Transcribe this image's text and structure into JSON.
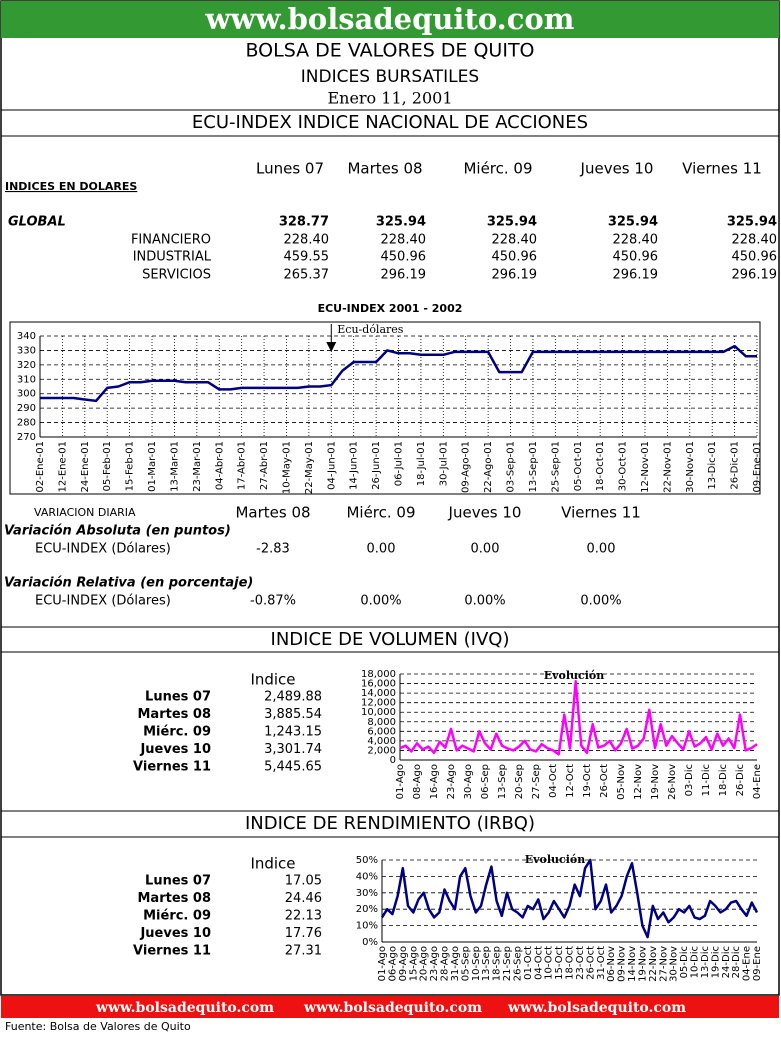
{
  "header": {
    "site": "www.bolsadequito.com",
    "title": "BOLSA DE VALORES DE QUITO",
    "subtitle": "INDICES BURSATILES",
    "date": "Enero 11, 2001"
  },
  "ecu": {
    "title": "ECU-INDEX  INDICE NACIONAL DE ACCIONES",
    "days": [
      "Lunes 07",
      "Martes 08",
      "Miérc. 09",
      "Jueves 10",
      "Viernes 11"
    ],
    "section": "INDICES EN DOLARES",
    "rows": [
      {
        "name": "GLOBAL",
        "values": [
          "328.77",
          "325.94",
          "325.94",
          "325.94",
          "325.94"
        ]
      },
      {
        "name": "FINANCIERO",
        "values": [
          "228.40",
          "228.40",
          "228.40",
          "228.40",
          "228.40"
        ]
      },
      {
        "name": "INDUSTRIAL",
        "values": [
          "459.55",
          "450.96",
          "450.96",
          "450.96",
          "450.96"
        ]
      },
      {
        "name": "SERVICIOS",
        "values": [
          "265.37",
          "296.19",
          "296.19",
          "296.19",
          "296.19"
        ]
      }
    ]
  },
  "variacion": {
    "title": "VARIACION DIARIA",
    "days": [
      "Martes 08",
      "Miérc. 09",
      "Jueves 10",
      "Viernes 11"
    ],
    "absolute": {
      "label": "Variación Absoluta (en puntos)",
      "row": "ECU-INDEX (Dólares)",
      "values": [
        "-2.83",
        "0.00",
        "0.00",
        "0.00"
      ]
    },
    "relative": {
      "label": "Variación Relativa (en porcentaje)",
      "row": "ECU-INDEX (Dólares)",
      "values": [
        "-0.87%",
        "0.00%",
        "0.00%",
        "0.00%"
      ]
    }
  },
  "volumen": {
    "title": "INDICE DE VOLUMEN (IVQ)",
    "column": "Indice",
    "rows": [
      {
        "day": "Lunes 07",
        "value": "2,489.88"
      },
      {
        "day": "Martes 08",
        "value": "3,885.54"
      },
      {
        "day": "Miérc. 09",
        "value": "1,243.15"
      },
      {
        "day": "Jueves 10",
        "value": "3,301.74"
      },
      {
        "day": "Viernes 11",
        "value": "5,445.65"
      }
    ]
  },
  "rendimiento": {
    "title": "INDICE DE RENDIMIENTO (IRBQ)",
    "column": "Indice",
    "rows": [
      {
        "day": "Lunes 07",
        "value": "17.05"
      },
      {
        "day": "Martes 08",
        "value": "24.46"
      },
      {
        "day": "Miérc. 09",
        "value": "22.13"
      },
      {
        "day": "Jueves 10",
        "value": "17.76"
      },
      {
        "day": "Viernes 11",
        "value": "27.31"
      }
    ]
  },
  "footer": {
    "links": [
      "www.bolsadequito.com",
      "www.bolsadequito.com",
      "www.bolsadequito.com"
    ],
    "source": "Fuente: Bolsa de Valores de Quito"
  },
  "chart_data": [
    {
      "type": "line",
      "title": "ECU-INDEX 2001 - 2002",
      "annotation": "Ecu-dólares",
      "color": "#000080",
      "grid": true,
      "xgrid": true,
      "ylim": [
        270,
        340
      ],
      "yticks": [
        270,
        280,
        290,
        300,
        310,
        320,
        330,
        340
      ],
      "categories": [
        "02-Ene-01",
        null,
        "12-Ene-01",
        null,
        "24-Ene-01",
        null,
        "05-Feb-01",
        null,
        "15-Feb-01",
        null,
        "01-Mar-01",
        null,
        "13-Mar-01",
        null,
        "23-Mar-01",
        null,
        "04-Abr-01",
        null,
        "17-Abr-01",
        null,
        "27-Abr-01",
        null,
        "10-May-01",
        null,
        "22-May-01",
        null,
        "04-Jun-01",
        null,
        "14-Jun-01",
        null,
        "26-Jun-01",
        null,
        "06-Jul-01",
        null,
        "18-Jul-01",
        null,
        "30-Jul-01",
        null,
        "09-Ago-01",
        null,
        "22-Ago-01",
        null,
        "03-Sep-01",
        null,
        "13-Sep-01",
        null,
        "25-Sep-01",
        null,
        "05-Oct-01",
        null,
        "18-Oct-01",
        null,
        "30-Oct-01",
        null,
        "12-Nov-01",
        null,
        "22-Nov-01",
        null,
        "30-Nov-01",
        null,
        "13-Dic-01",
        null,
        "26-Dic-01",
        null,
        "09-Ene-01"
      ],
      "values": [
        297,
        297,
        297,
        297,
        296,
        295,
        304,
        305,
        308,
        308,
        309,
        309,
        309,
        308,
        308,
        308,
        303,
        303,
        304,
        304,
        304,
        304,
        304,
        304,
        305,
        305,
        306,
        316,
        322,
        322,
        322,
        330,
        328,
        328,
        327,
        327,
        327,
        329,
        329,
        329,
        329,
        315,
        315,
        315,
        329,
        329,
        329,
        329,
        329,
        329,
        329,
        329,
        329,
        329,
        329,
        329,
        329,
        329,
        329,
        329,
        329,
        329,
        333,
        326,
        326
      ]
    },
    {
      "type": "line",
      "title": "Evolución",
      "color": "#ff00ff",
      "grid": true,
      "ylim": [
        0,
        18000
      ],
      "yticks": [
        0,
        {
          "value": 2000,
          "label": "2,000"
        },
        {
          "value": 4000,
          "label": "4,000"
        },
        {
          "value": 6000,
          "label": "6,000"
        },
        {
          "value": 8000,
          "label": "8,000"
        },
        {
          "value": 10000,
          "label": "10,000"
        },
        {
          "value": 12000,
          "label": "12,000"
        },
        {
          "value": 14000,
          "label": "14,000"
        },
        {
          "value": 16000,
          "label": "16,000"
        },
        {
          "value": 18000,
          "label": "18,000"
        }
      ],
      "categories": [
        "01-Ago",
        null,
        null,
        "08-Ago",
        null,
        null,
        "16-Ago",
        null,
        null,
        "23-Ago",
        null,
        null,
        "30-Ago",
        null,
        null,
        "06-Sep",
        null,
        null,
        "13-Sep",
        null,
        null,
        "20-Sep",
        null,
        null,
        "27-Sep",
        null,
        null,
        "04-Oct",
        null,
        null,
        "12-Oct",
        null,
        null,
        "19-Oct",
        null,
        null,
        "26-Oct",
        null,
        null,
        "05-Nov",
        null,
        null,
        "12-Nov",
        null,
        null,
        "19-Nov",
        null,
        null,
        "26-Nov",
        null,
        null,
        "03-Dic",
        null,
        null,
        "11-Dic",
        null,
        null,
        "18-Dic",
        null,
        null,
        "26-Dic",
        null,
        null,
        "04-Ene"
      ],
      "values": [
        2500,
        3000,
        1800,
        3500,
        2200,
        2800,
        1500,
        3800,
        2600,
        6500,
        2000,
        3000,
        2400,
        1800,
        6000,
        3500,
        2200,
        5500,
        3000,
        2400,
        2000,
        2800,
        4000,
        2200,
        1800,
        3300,
        2500,
        2000,
        1200,
        9500,
        2400,
        16500,
        3000,
        1500,
        7500,
        2600,
        3000,
        4000,
        2000,
        3500,
        6500,
        2400,
        3000,
        4500,
        10500,
        2500,
        7500,
        3000,
        5000,
        3500,
        2200,
        6000,
        2800,
        3500,
        4800,
        2200,
        5500,
        3000,
        4500,
        2500,
        9500,
        2000,
        2500,
        3300
      ]
    },
    {
      "type": "line",
      "title": "Evolución",
      "color": "#000080",
      "grid": true,
      "ylim": [
        0,
        50
      ],
      "yticks": [
        {
          "value": 0,
          "label": "0%"
        },
        {
          "value": 10,
          "label": "10%"
        },
        {
          "value": 20,
          "label": "20%"
        },
        {
          "value": 30,
          "label": "30%"
        },
        {
          "value": 40,
          "label": "40%"
        },
        {
          "value": 50,
          "label": "50%"
        }
      ],
      "categories": [
        "01-Ago",
        null,
        "06-Ago",
        null,
        "09-Ago",
        null,
        "15-Ago",
        null,
        "20-Ago",
        null,
        "23-Ago",
        null,
        "28-Ago",
        null,
        "31-Ago",
        null,
        "05-Sep",
        null,
        "10-Sep",
        null,
        "13-Sep",
        null,
        "18-Sep",
        null,
        "21-Sep",
        null,
        "26-Sep",
        null,
        "01-Oct",
        null,
        "04-Oct",
        null,
        "10-Oct",
        null,
        "15-Oct",
        null,
        "18-Oct",
        null,
        "23-Oct",
        null,
        "26-Oct",
        null,
        "31-Oct",
        null,
        "06-Nov",
        null,
        "09-Nov",
        null,
        "14-Nov",
        null,
        "19-Nov",
        null,
        "22-Nov",
        null,
        "27-Nov",
        null,
        "30-Nov",
        null,
        "05-Dic",
        null,
        "10-Dic",
        null,
        "13-Dic",
        null,
        "19-Dic",
        null,
        "24-Dic",
        null,
        "28-Dic",
        null,
        "04-Ene",
        null,
        "09-Ene"
      ],
      "values": [
        15,
        20,
        17,
        28,
        45,
        22,
        18,
        26,
        30,
        20,
        15,
        18,
        32,
        25,
        20,
        40,
        45,
        28,
        18,
        22,
        35,
        46,
        25,
        16,
        30,
        20,
        18,
        15,
        22,
        20,
        26,
        14,
        18,
        25,
        20,
        15,
        22,
        35,
        28,
        45,
        50,
        20,
        25,
        35,
        18,
        22,
        28,
        40,
        48,
        30,
        10,
        3,
        22,
        14,
        18,
        12,
        15,
        20,
        18,
        22,
        15,
        14,
        16,
        25,
        22,
        18,
        20,
        24,
        25,
        20,
        16,
        24,
        18
      ]
    }
  ]
}
